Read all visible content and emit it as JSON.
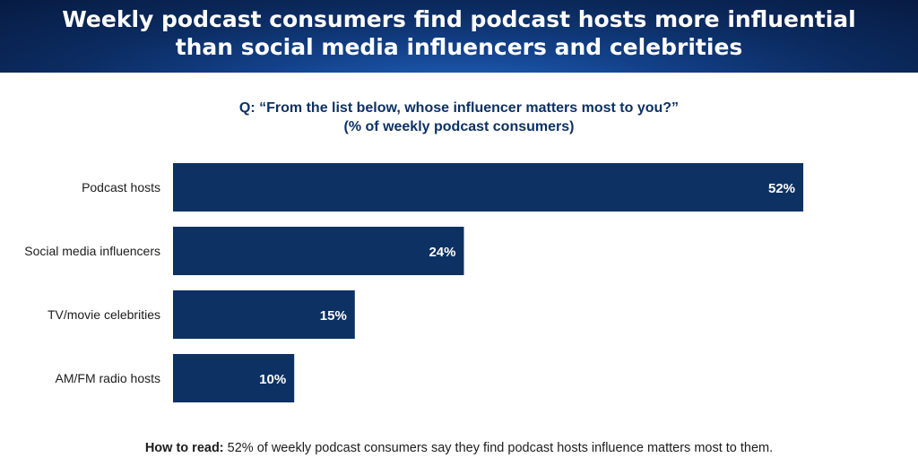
{
  "header": {
    "title": "Weekly podcast consumers find podcast hosts more influential\nthan social media influencers and celebrities"
  },
  "question": "Q: “From the list below, whose influencer matters most to you?”\n(% of weekly podcast consumers)",
  "chart_data": {
    "type": "bar",
    "orientation": "horizontal",
    "categories": [
      "Podcast hosts",
      "Social media influencers",
      "TV/movie celebrities",
      "AM/FM radio hosts"
    ],
    "values": [
      52,
      24,
      15,
      10
    ],
    "value_labels": [
      "52%",
      "24%",
      "15%",
      "10%"
    ],
    "title": "",
    "xlabel": "",
    "ylabel": "",
    "xlim": [
      0,
      56
    ],
    "grid": false,
    "legend": "none"
  },
  "colors": {
    "bar": "#0d3163"
  },
  "footnote": {
    "lead": "How to read:",
    "text": " 52% of weekly podcast consumers say they find podcast hosts influence matters most to them."
  }
}
